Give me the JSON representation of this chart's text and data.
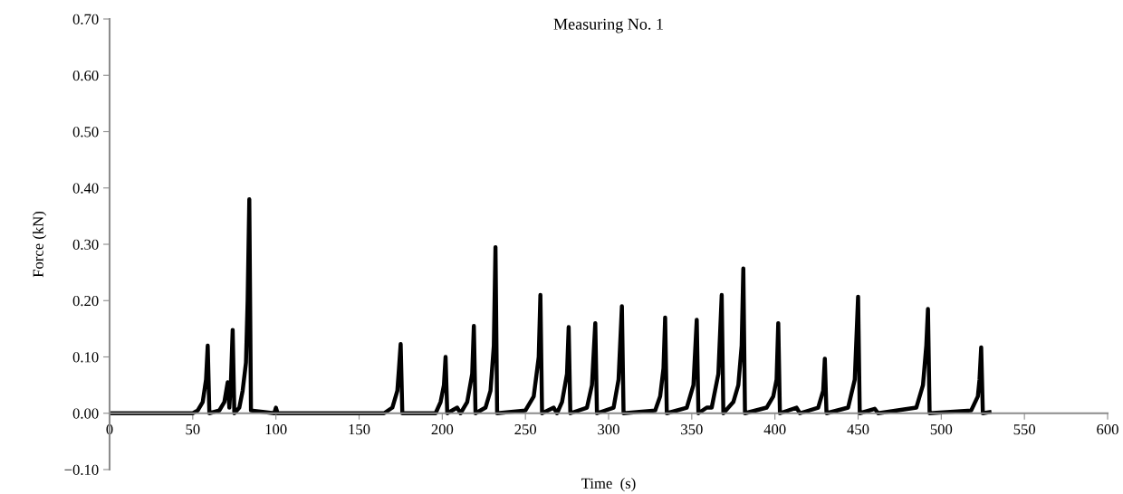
{
  "chart_data": {
    "type": "line",
    "title": "Measuring No. 1",
    "xlabel": "Time  (s)",
    "ylabel": "Force (kN)",
    "x": [
      0,
      50,
      53,
      56,
      58,
      59,
      60,
      66,
      69,
      71,
      72,
      73,
      74,
      75,
      78,
      80,
      82,
      83,
      84,
      85,
      99,
      100,
      101,
      165,
      170,
      173,
      174,
      175,
      176,
      196,
      199,
      201,
      202,
      203,
      209,
      211,
      215,
      218,
      219,
      220,
      226,
      229,
      231,
      232,
      233,
      250,
      255,
      258,
      259,
      260,
      267,
      269,
      272,
      275,
      276,
      277,
      287,
      290,
      292,
      293,
      303,
      306,
      308,
      309,
      328,
      331,
      333,
      334,
      335,
      347,
      351,
      353,
      354,
      359,
      362,
      366,
      368,
      369,
      375,
      378,
      380,
      381,
      382,
      395,
      399,
      401,
      402,
      403,
      413,
      415,
      426,
      429,
      430,
      431,
      444,
      448,
      450,
      451,
      460,
      462,
      485,
      489,
      491,
      492,
      493,
      518,
      522,
      523,
      524,
      525,
      529
    ],
    "series": [
      {
        "color": "#000000",
        "values": [
          0,
          0,
          0.005,
          0.02,
          0.06,
          0.12,
          0,
          0.005,
          0.02,
          0.055,
          0.01,
          0.06,
          0.148,
          0,
          0.01,
          0.04,
          0.09,
          0.2,
          0.38,
          0.005,
          0,
          0.01,
          0,
          0,
          0.01,
          0.04,
          0.08,
          0.123,
          0,
          0,
          0.02,
          0.05,
          0.1,
          0,
          0.01,
          0,
          0.02,
          0.07,
          0.155,
          0,
          0.01,
          0.04,
          0.12,
          0.295,
          0,
          0.005,
          0.03,
          0.1,
          0.21,
          0,
          0.01,
          0,
          0.02,
          0.07,
          0.153,
          0,
          0.01,
          0.05,
          0.16,
          0,
          0.01,
          0.06,
          0.19,
          0,
          0.005,
          0.03,
          0.08,
          0.17,
          0,
          0.01,
          0.05,
          0.166,
          0,
          0.01,
          0.01,
          0.07,
          0.21,
          0,
          0.02,
          0.05,
          0.12,
          0.257,
          0,
          0.01,
          0.03,
          0.06,
          0.16,
          0,
          0.01,
          0,
          0.01,
          0.04,
          0.097,
          0,
          0.01,
          0.06,
          0.207,
          0,
          0.008,
          0,
          0.01,
          0.05,
          0.12,
          0.185,
          0,
          0.005,
          0.03,
          0.06,
          0.117,
          0,
          0.002
        ]
      }
    ],
    "xlim": [
      0,
      600
    ],
    "xticks": [
      0,
      50,
      100,
      150,
      200,
      250,
      300,
      350,
      400,
      450,
      500,
      550,
      600
    ],
    "ylim": [
      -0.1,
      0.7
    ],
    "yticks": [
      {
        "value": -0.1,
        "label": "−0.10"
      },
      {
        "value": 0,
        "label": "0.00"
      },
      {
        "value": 0.1,
        "label": "0.10"
      },
      {
        "value": 0.2,
        "label": "0.20"
      },
      {
        "value": 0.3,
        "label": "0.30"
      },
      {
        "value": 0.4,
        "label": "0.40"
      },
      {
        "value": 0.5,
        "label": "0.50"
      },
      {
        "value": 0.6,
        "label": "0.60"
      },
      {
        "value": 0.7,
        "label": "0.70"
      }
    ],
    "grid": false,
    "legend": false,
    "marker": "none",
    "line_style": "solid"
  }
}
